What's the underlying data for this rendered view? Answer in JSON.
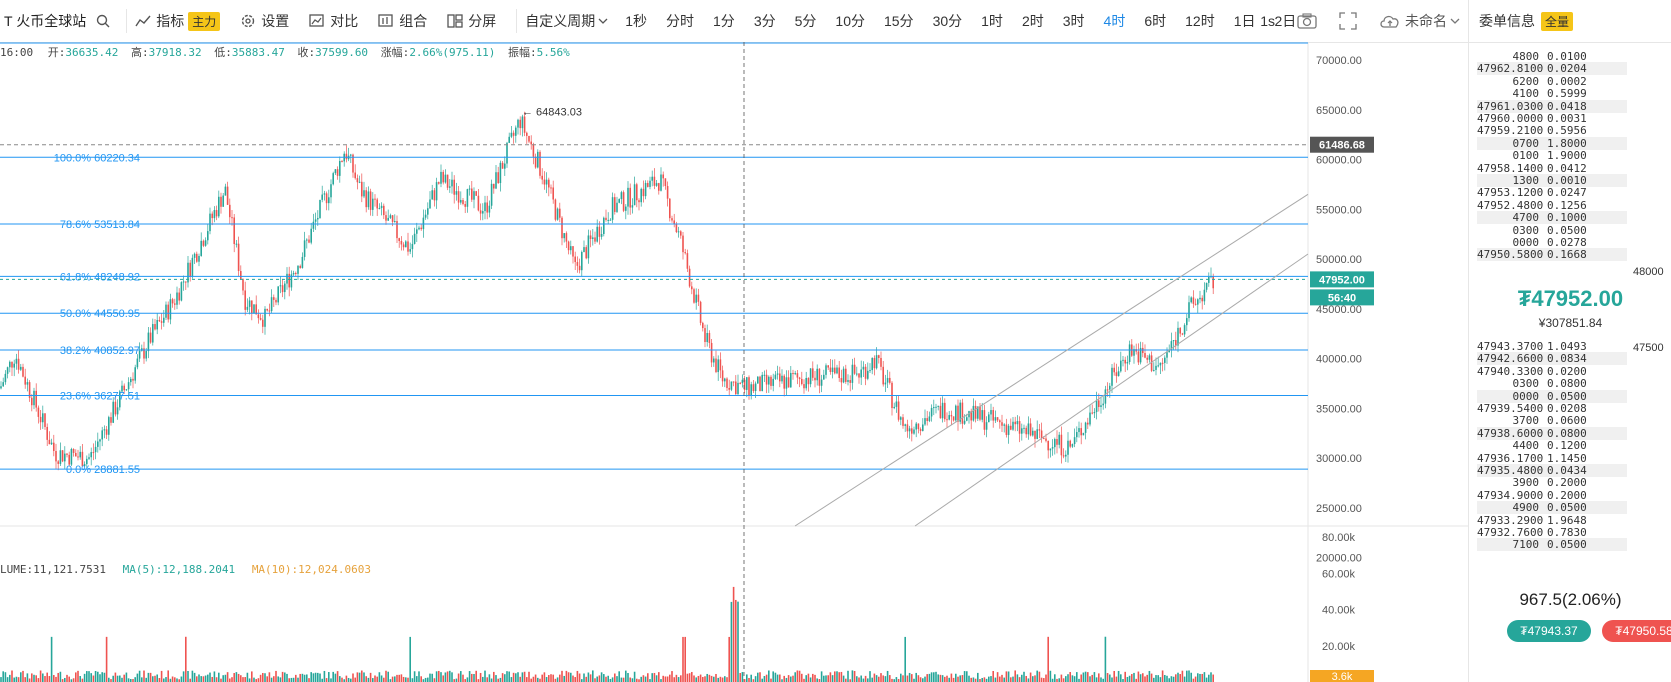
{
  "toolbar": {
    "brand": "T 火币全球站",
    "indicator_label": "指标",
    "indicator_badge": "主力",
    "settings_label": "设置",
    "compare_label": "对比",
    "combine_label": "组合",
    "split_label": "分屏",
    "custom_period_label": "自定义周期",
    "periods": [
      "1秒",
      "分时",
      "1分",
      "3分",
      "5分",
      "10分",
      "15分",
      "30分",
      "1时",
      "2时",
      "3时",
      "4时",
      "6时",
      "12时",
      "1日",
      "2日"
    ],
    "active_period": "4时",
    "interval_label": "1s",
    "user_label": "未命名"
  },
  "ohlc": {
    "time": "16:00",
    "open_label": "开:",
    "open": "36635.42",
    "high_label": "高:",
    "high": "37918.32",
    "low_label": "低:",
    "low": "35883.47",
    "close_label": "收:",
    "close": "37599.60",
    "change_label": "涨幅:",
    "change": "2.66%(975.11)",
    "amp_label": "振幅:",
    "amp": "5.56%"
  },
  "price_axis": [
    "70000.00",
    "65000.00",
    "60000.00",
    "55000.00",
    "50000.00",
    "45000.00",
    "40000.00",
    "35000.00",
    "30000.00",
    "25000.00",
    "20000.00"
  ],
  "price_tags": {
    "dashed_line_price": "61486.68",
    "current_price": "47952.00",
    "countdown": "56:40"
  },
  "peak_label": "← 64843.03",
  "fib_levels": [
    {
      "label": "100.0% 60220.34"
    },
    {
      "label": "78.6% 53513.84"
    },
    {
      "label": "61.8% 48248.92"
    },
    {
      "label": "50.0% 44550.95"
    },
    {
      "label": "38.2% 40852.97"
    },
    {
      "label": "23.6% 36277.51"
    },
    {
      "label": "0.0% 28881.55"
    }
  ],
  "volume": {
    "volume_label": "LUME:11,121.7531",
    "ma5_label": "MA(5):12,188.2041",
    "ma10_label": "MA(10):12,024.0603",
    "axis": [
      "80.00k",
      "60.00k",
      "40.00k",
      "20.00k"
    ],
    "current_tag": "3.6k"
  },
  "colors": {
    "up": "#26a69a",
    "down": "#ef5350",
    "fib": "#2196f3",
    "ma5": "#26a69a",
    "ma10": "#e6a23c",
    "accent": "#1e88e5"
  },
  "orderbook": {
    "title": "委单信息",
    "badge": "全量",
    "asks": [
      {
        "p": "4800",
        "a": "0.0100"
      },
      {
        "p": "47962.8100",
        "a": "0.0204"
      },
      {
        "p": "6200",
        "a": "0.0002"
      },
      {
        "p": "4100",
        "a": "0.5999"
      },
      {
        "p": "47961.0300",
        "a": "0.0418"
      },
      {
        "p": "47960.0000",
        "a": "0.0031"
      },
      {
        "p": "47959.2100",
        "a": "0.5956"
      },
      {
        "p": "0700",
        "a": "1.8000"
      },
      {
        "p": "0100",
        "a": "1.9000"
      },
      {
        "p": "47958.1400",
        "a": "0.0412"
      },
      {
        "p": "1300",
        "a": "0.0010"
      },
      {
        "p": "47953.1200",
        "a": "0.0247"
      },
      {
        "p": "47952.4800",
        "a": "0.1256"
      },
      {
        "p": "4700",
        "a": "0.1000"
      },
      {
        "p": "0300",
        "a": "0.0500"
      },
      {
        "p": "0000",
        "a": "0.0278"
      },
      {
        "p": "47950.5800",
        "a": "0.1668"
      }
    ],
    "last_price": "₮47952.00",
    "last_cny": "¥307851.84",
    "bids": [
      {
        "p": "47943.3700",
        "a": "1.0493"
      },
      {
        "p": "47942.6600",
        "a": "0.0834"
      },
      {
        "p": "47940.3300",
        "a": "0.0200"
      },
      {
        "p": "0300",
        "a": "0.0800"
      },
      {
        "p": "0000",
        "a": "0.0500"
      },
      {
        "p": "47939.5400",
        "a": "0.0208"
      },
      {
        "p": "3700",
        "a": "0.0600"
      },
      {
        "p": "47938.6000",
        "a": "0.0800"
      },
      {
        "p": "4400",
        "a": "0.1200"
      },
      {
        "p": "47936.1700",
        "a": "1.1450"
      },
      {
        "p": "47935.4800",
        "a": "0.0434"
      },
      {
        "p": "3900",
        "a": "0.2000"
      },
      {
        "p": "47934.9000",
        "a": "0.2000"
      },
      {
        "p": "4900",
        "a": "0.0500"
      },
      {
        "p": "47933.2900",
        "a": "1.9648"
      },
      {
        "p": "47932.7600",
        "a": "0.7830"
      },
      {
        "p": "7100",
        "a": "0.0500"
      }
    ],
    "level_high": "48000",
    "level_low": "47500",
    "change": "967.5(2.06%)",
    "bid_button": "₮47943.37",
    "ask_button": "₮47950.58"
  }
}
